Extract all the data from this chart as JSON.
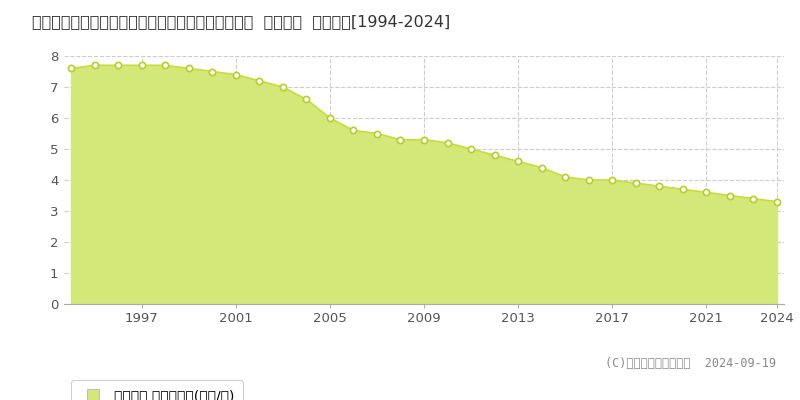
{
  "title": "長野県上水内郡信濃町大字古間字切通し９２５番２  公示地価  地価推移[1994-2024]",
  "years": [
    1994,
    1995,
    1996,
    1997,
    1998,
    1999,
    2000,
    2001,
    2002,
    2003,
    2004,
    2005,
    2006,
    2007,
    2008,
    2009,
    2010,
    2011,
    2012,
    2013,
    2014,
    2015,
    2016,
    2017,
    2018,
    2019,
    2020,
    2021,
    2022,
    2023,
    2024
  ],
  "values": [
    7.6,
    7.7,
    7.7,
    7.7,
    7.7,
    7.6,
    7.5,
    7.4,
    7.2,
    7.0,
    6.6,
    6.0,
    5.6,
    5.5,
    5.3,
    5.3,
    5.2,
    5.0,
    4.8,
    4.6,
    4.4,
    4.1,
    4.0,
    4.0,
    3.9,
    3.8,
    3.7,
    3.6,
    3.5,
    3.4,
    3.3
  ],
  "line_color": "#c8dc3c",
  "fill_color": "#d4e87a",
  "marker_color": "#ffffff",
  "marker_edge_color": "#b8cc2c",
  "ylim": [
    0,
    8
  ],
  "yticks": [
    0,
    1,
    2,
    3,
    4,
    5,
    6,
    7,
    8
  ],
  "xticks": [
    1997,
    2001,
    2005,
    2009,
    2013,
    2017,
    2021,
    2024
  ],
  "grid_color": "#cccccc",
  "bg_color": "#ffffff",
  "legend_label": "公示地価 平均坪単価(万円/坪)",
  "copyright_text": "(C)土地価格ドットコム  2024-09-19",
  "title_fontsize": 11.5,
  "tick_fontsize": 9.5,
  "legend_fontsize": 10,
  "copyright_fontsize": 8.5
}
